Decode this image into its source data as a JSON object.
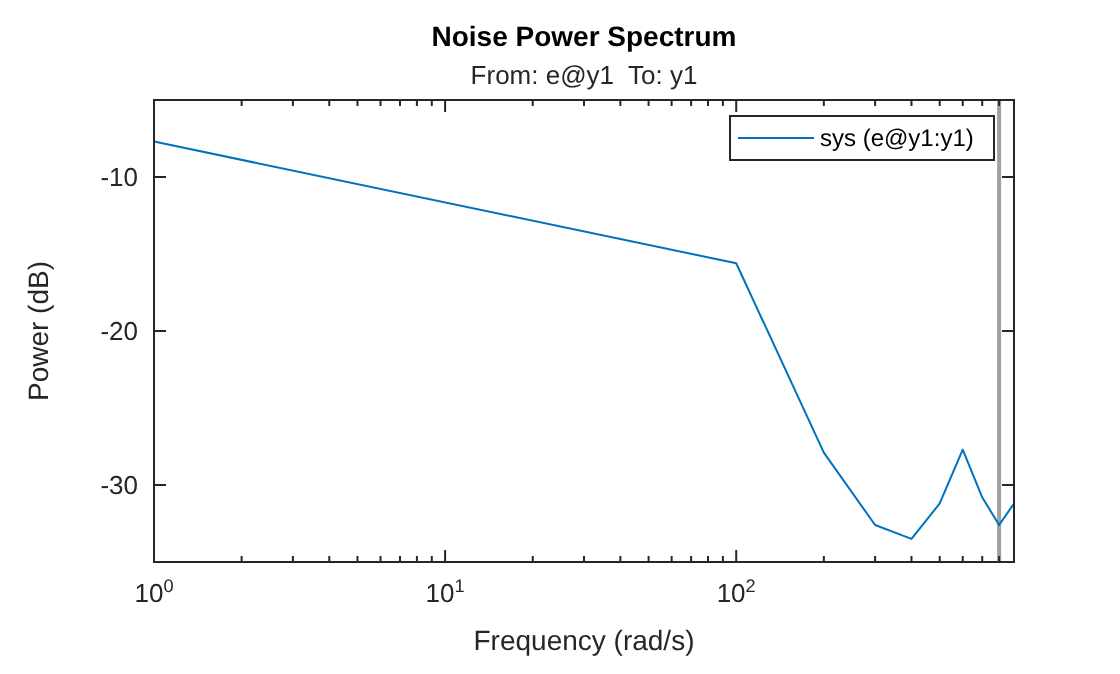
{
  "chart_data": {
    "type": "line",
    "title": "Noise Power Spectrum",
    "subtitle": "From: e@y1  To: y1",
    "xlabel": "Frequency (rad/s)",
    "ylabel": "Power (dB)",
    "x": [
      1,
      100,
      200,
      300,
      400,
      500,
      600,
      700,
      800,
      900
    ],
    "series": [
      {
        "name": "sys (e@y1:y1)",
        "color": "#0072bd",
        "values": [
          -7.7,
          -15.6,
          -27.9,
          -32.6,
          -33.5,
          -31.2,
          -27.7,
          -30.8,
          -32.6,
          -31.2
        ]
      }
    ],
    "log": "x",
    "xlim": [
      1,
      900
    ],
    "xticks": [
      {
        "value": 1,
        "label": "10$^{0}$"
      },
      {
        "value": 10,
        "label": "10$^{1}$"
      },
      {
        "value": 100,
        "label": "10$^{2}$"
      }
    ],
    "ylim": [
      -35,
      -5
    ],
    "yticks": [
      -10,
      -20,
      -30
    ],
    "ref_lines": [
      {
        "axis": "x",
        "value": 800,
        "color": "#a0a0a0"
      }
    ],
    "legend": "top right",
    "grid": false,
    "line_style": "solid"
  }
}
